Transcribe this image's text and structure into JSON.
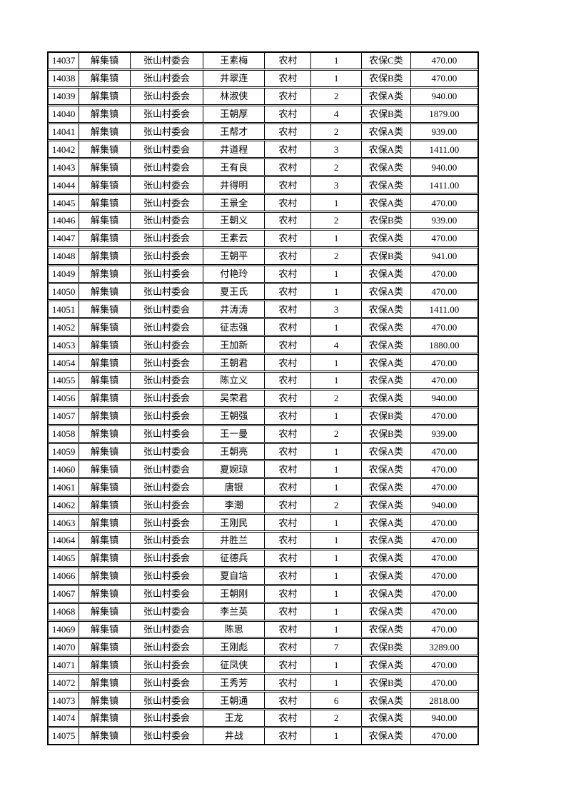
{
  "page": {
    "background_color": "#ffffff",
    "text_color": "#000000",
    "border_color": "#000000"
  },
  "table": {
    "column_count": 8,
    "rows": [
      [
        "14037",
        "解集镇",
        "张山村委会",
        "王素梅",
        "农村",
        "1",
        "农保C类",
        "470.00"
      ],
      [
        "14038",
        "解集镇",
        "张山村委会",
        "井翠连",
        "农村",
        "1",
        "农保B类",
        "470.00"
      ],
      [
        "14039",
        "解集镇",
        "张山村委会",
        "林淑侠",
        "农村",
        "2",
        "农保A类",
        "940.00"
      ],
      [
        "14040",
        "解集镇",
        "张山村委会",
        "王朝厚",
        "农村",
        "4",
        "农保B类",
        "1879.00"
      ],
      [
        "14041",
        "解集镇",
        "张山村委会",
        "王帮才",
        "农村",
        "2",
        "农保A类",
        "939.00"
      ],
      [
        "14042",
        "解集镇",
        "张山村委会",
        "井道程",
        "农村",
        "3",
        "农保A类",
        "1411.00"
      ],
      [
        "14043",
        "解集镇",
        "张山村委会",
        "王有良",
        "农村",
        "2",
        "农保A类",
        "940.00"
      ],
      [
        "14044",
        "解集镇",
        "张山村委会",
        "井得明",
        "农村",
        "3",
        "农保A类",
        "1411.00"
      ],
      [
        "14045",
        "解集镇",
        "张山村委会",
        "王景全",
        "农村",
        "1",
        "农保A类",
        "470.00"
      ],
      [
        "14046",
        "解集镇",
        "张山村委会",
        "王朝义",
        "农村",
        "2",
        "农保B类",
        "939.00"
      ],
      [
        "14047",
        "解集镇",
        "张山村委会",
        "王素云",
        "农村",
        "1",
        "农保A类",
        "470.00"
      ],
      [
        "14048",
        "解集镇",
        "张山村委会",
        "王朝平",
        "农村",
        "2",
        "农保B类",
        "941.00"
      ],
      [
        "14049",
        "解集镇",
        "张山村委会",
        "付艳玲",
        "农村",
        "1",
        "农保A类",
        "470.00"
      ],
      [
        "14050",
        "解集镇",
        "张山村委会",
        "夏王氏",
        "农村",
        "1",
        "农保A类",
        "470.00"
      ],
      [
        "14051",
        "解集镇",
        "张山村委会",
        "井涛涛",
        "农村",
        "3",
        "农保A类",
        "1411.00"
      ],
      [
        "14052",
        "解集镇",
        "张山村委会",
        "征志强",
        "农村",
        "1",
        "农保A类",
        "470.00"
      ],
      [
        "14053",
        "解集镇",
        "张山村委会",
        "王加新",
        "农村",
        "4",
        "农保A类",
        "1880.00"
      ],
      [
        "14054",
        "解集镇",
        "张山村委会",
        "王朝君",
        "农村",
        "1",
        "农保A类",
        "470.00"
      ],
      [
        "14055",
        "解集镇",
        "张山村委会",
        "陈立义",
        "农村",
        "1",
        "农保A类",
        "470.00"
      ],
      [
        "14056",
        "解集镇",
        "张山村委会",
        "吴荣君",
        "农村",
        "2",
        "农保A类",
        "940.00"
      ],
      [
        "14057",
        "解集镇",
        "张山村委会",
        "王朝强",
        "农村",
        "1",
        "农保B类",
        "470.00"
      ],
      [
        "14058",
        "解集镇",
        "张山村委会",
        "王一曼",
        "农村",
        "2",
        "农保B类",
        "939.00"
      ],
      [
        "14059",
        "解集镇",
        "张山村委会",
        "王朝亮",
        "农村",
        "1",
        "农保A类",
        "470.00"
      ],
      [
        "14060",
        "解集镇",
        "张山村委会",
        "夏婉琼",
        "农村",
        "1",
        "农保A类",
        "470.00"
      ],
      [
        "14061",
        "解集镇",
        "张山村委会",
        "唐银",
        "农村",
        "1",
        "农保A类",
        "470.00"
      ],
      [
        "14062",
        "解集镇",
        "张山村委会",
        "李潮",
        "农村",
        "2",
        "农保A类",
        "940.00"
      ],
      [
        "14063",
        "解集镇",
        "张山村委会",
        "王刚民",
        "农村",
        "1",
        "农保A类",
        "470.00"
      ],
      [
        "14064",
        "解集镇",
        "张山村委会",
        "井胜兰",
        "农村",
        "1",
        "农保A类",
        "470.00"
      ],
      [
        "14065",
        "解集镇",
        "张山村委会",
        "征德兵",
        "农村",
        "1",
        "农保A类",
        "470.00"
      ],
      [
        "14066",
        "解集镇",
        "张山村委会",
        "夏自培",
        "农村",
        "1",
        "农保A类",
        "470.00"
      ],
      [
        "14067",
        "解集镇",
        "张山村委会",
        "王朝刚",
        "农村",
        "1",
        "农保A类",
        "470.00"
      ],
      [
        "14068",
        "解集镇",
        "张山村委会",
        "李兰英",
        "农村",
        "1",
        "农保A类",
        "470.00"
      ],
      [
        "14069",
        "解集镇",
        "张山村委会",
        "陈思",
        "农村",
        "1",
        "农保A类",
        "470.00"
      ],
      [
        "14070",
        "解集镇",
        "张山村委会",
        "王刚彪",
        "农村",
        "7",
        "农保B类",
        "3289.00"
      ],
      [
        "14071",
        "解集镇",
        "张山村委会",
        "征凤侠",
        "农村",
        "1",
        "农保A类",
        "470.00"
      ],
      [
        "14072",
        "解集镇",
        "张山村委会",
        "王秀芳",
        "农村",
        "1",
        "农保B类",
        "470.00"
      ],
      [
        "14073",
        "解集镇",
        "张山村委会",
        "王朝通",
        "农村",
        "6",
        "农保A类",
        "2818.00"
      ],
      [
        "14074",
        "解集镇",
        "张山村委会",
        "王龙",
        "农村",
        "2",
        "农保A类",
        "940.00"
      ],
      [
        "14075",
        "解集镇",
        "张山村委会",
        "井战",
        "农村",
        "1",
        "农保A类",
        "470.00"
      ]
    ]
  }
}
